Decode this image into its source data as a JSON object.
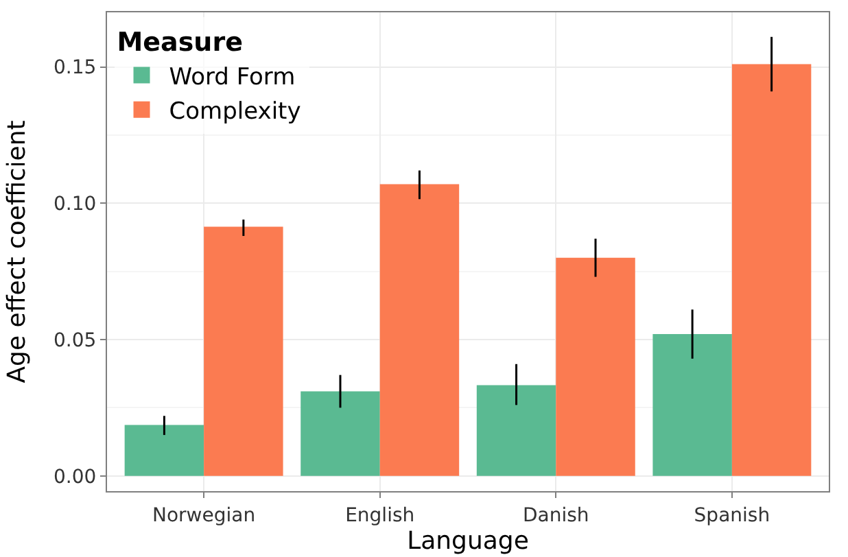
{
  "chart_data": {
    "type": "bar",
    "xlabel": "Language",
    "ylabel": "Age effect coefficient",
    "legend_title": "Measure",
    "categories": [
      "Norwegian",
      "English",
      "Danish",
      "Spanish"
    ],
    "series": [
      {
        "name": "Word Form",
        "color": "#5aba92",
        "values": [
          0.0187,
          0.031,
          0.0333,
          0.052
        ],
        "errors": [
          [
            0.015,
            0.022
          ],
          [
            0.025,
            0.037
          ],
          [
            0.026,
            0.041
          ],
          [
            0.043,
            0.061
          ]
        ]
      },
      {
        "name": "Complexity",
        "color": "#fb7b51",
        "values": [
          0.0914,
          0.107,
          0.08,
          0.151
        ],
        "errors": [
          [
            0.088,
            0.094
          ],
          [
            0.1015,
            0.112
          ],
          [
            0.073,
            0.087
          ],
          [
            0.141,
            0.161
          ]
        ]
      }
    ],
    "ylim": [
      -0.0056,
      0.17
    ],
    "yticks": [
      {
        "value": 0,
        "label": "0.00"
      },
      0.05,
      {
        "value": 0.1,
        "label": "0.10"
      },
      0.15
    ],
    "grid": true,
    "legend": "top left"
  }
}
